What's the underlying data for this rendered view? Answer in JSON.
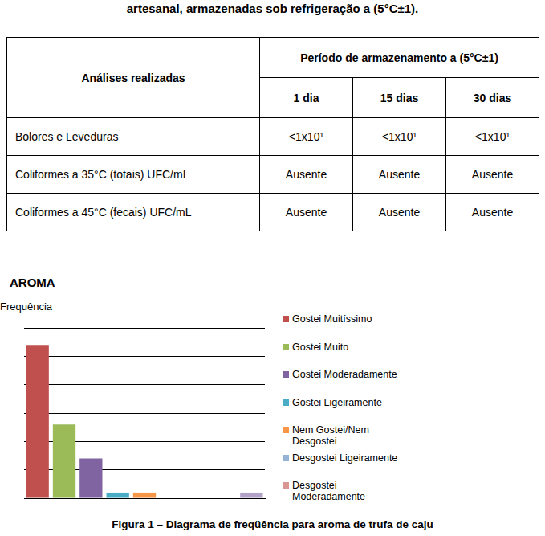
{
  "caption_top": "artesanal, armazenadas sob refrigeração a (5°C±1).",
  "table": {
    "header": [
      "Análises realizadas",
      "Período de armazenamento a (5°C±1)"
    ],
    "subheader": [
      "1 dia",
      "15 dias",
      "30 dias"
    ],
    "rows": [
      [
        "Bolores e Leveduras",
        "<1x10¹",
        "<1x10¹",
        "<1x10¹"
      ],
      [
        "Coliformes a 35°C (totais) UFC/mL",
        "Ausente",
        "Ausente",
        "Ausente"
      ],
      [
        "Coliformes a 45°C (fecais) UFC/mL",
        "Ausente",
        "Ausente",
        "Ausente"
      ]
    ]
  },
  "heading": "AROMA",
  "chart_data": {
    "type": "bar",
    "y_label": "Frequência",
    "categories": [
      "Gostei Muitíssimo",
      "Gostei Muito",
      "Gostei Moderadamente",
      "Gostei Ligeiramente",
      "Nem Gostei/Nem Desgostei",
      "Desgostei Ligeiramente",
      "Desgostei Moderadamente",
      null,
      null
    ],
    "values": [
      5.4,
      2.6,
      1.4,
      0.2,
      0.2,
      0,
      0,
      0,
      0.2
    ],
    "colors": [
      "#c0504d",
      "#9bbb59",
      "#8064a2",
      "#4bacc6",
      "#f79646",
      "#95b3d7",
      "#d99694",
      "#c3d69b",
      "#b3a2c7"
    ],
    "ylim": [
      0,
      6
    ],
    "yticks": [
      0,
      1,
      2,
      3,
      4,
      5,
      6
    ],
    "grid": true,
    "tick_labels": false,
    "legend": "right"
  },
  "figure_caption": "Figura 1 – Diagrama de freqüência para aroma de trufa de caju"
}
